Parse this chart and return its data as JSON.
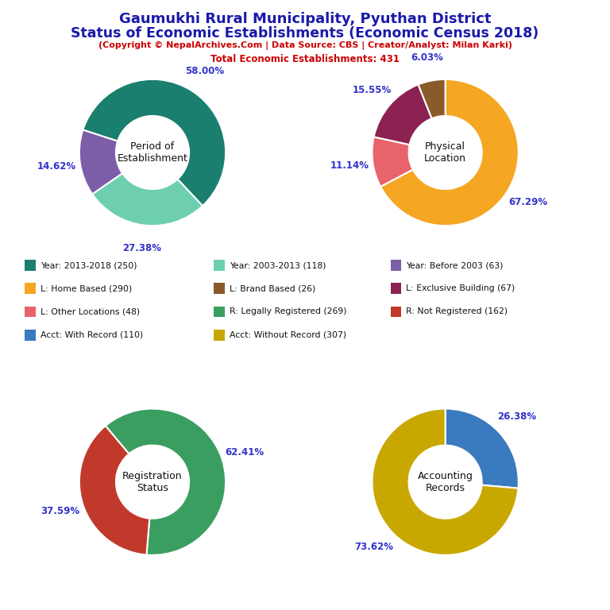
{
  "title_line1": "Gaumukhi Rural Municipality, Pyuthan District",
  "title_line2": "Status of Economic Establishments (Economic Census 2018)",
  "subtitle1": "(Copyright © NepalArchives.Com | Data Source: CBS | Creator/Analyst: Milan Karki)",
  "subtitle2": "Total Economic Establishments: 431",
  "pie1_label": "Period of\nEstablishment",
  "pie1_values": [
    250,
    118,
    63
  ],
  "pie1_pcts": [
    "58.00%",
    "27.38%",
    "14.62%"
  ],
  "pie1_colors": [
    "#1a7f6e",
    "#6dcfb0",
    "#7b5ea7"
  ],
  "pie1_startangle": 162,
  "pie2_label": "Physical\nLocation",
  "pie2_values": [
    290,
    48,
    67,
    26
  ],
  "pie2_pcts": [
    "67.29%",
    "11.14%",
    "15.55%",
    "6.03%"
  ],
  "pie2_colors": [
    "#f5a623",
    "#e8636a",
    "#8b2252",
    "#8b5a2b"
  ],
  "pie2_startangle": 90,
  "pie3_label": "Registration\nStatus",
  "pie3_values": [
    269,
    162
  ],
  "pie3_pcts": [
    "62.41%",
    "37.59%"
  ],
  "pie3_colors": [
    "#3a9e60",
    "#c0392b"
  ],
  "pie3_startangle": 130,
  "pie4_label": "Accounting\nRecords",
  "pie4_values": [
    110,
    307
  ],
  "pie4_pcts": [
    "26.38%",
    "73.62%"
  ],
  "pie4_colors": [
    "#3a7abf",
    "#c8a800"
  ],
  "pie4_startangle": 90,
  "legend_items": [
    {
      "label": "Year: 2013-2018 (250)",
      "color": "#1a7f6e"
    },
    {
      "label": "Year: 2003-2013 (118)",
      "color": "#6dcfb0"
    },
    {
      "label": "Year: Before 2003 (63)",
      "color": "#7b5ea7"
    },
    {
      "label": "L: Home Based (290)",
      "color": "#f5a623"
    },
    {
      "label": "L: Brand Based (26)",
      "color": "#8b5a2b"
    },
    {
      "label": "L: Exclusive Building (67)",
      "color": "#8b2252"
    },
    {
      "label": "L: Other Locations (48)",
      "color": "#e8636a"
    },
    {
      "label": "R: Legally Registered (269)",
      "color": "#3a9e60"
    },
    {
      "label": "R: Not Registered (162)",
      "color": "#c0392b"
    },
    {
      "label": "Acct: With Record (110)",
      "color": "#3a7abf"
    },
    {
      "label": "Acct: Without Record (307)",
      "color": "#c8a800"
    }
  ],
  "title_color": "#1a1aaa",
  "subtitle_color": "#cc0000",
  "pct_color": "#3333cc",
  "center_label_color": "#111111",
  "bg_color": "#ffffff"
}
